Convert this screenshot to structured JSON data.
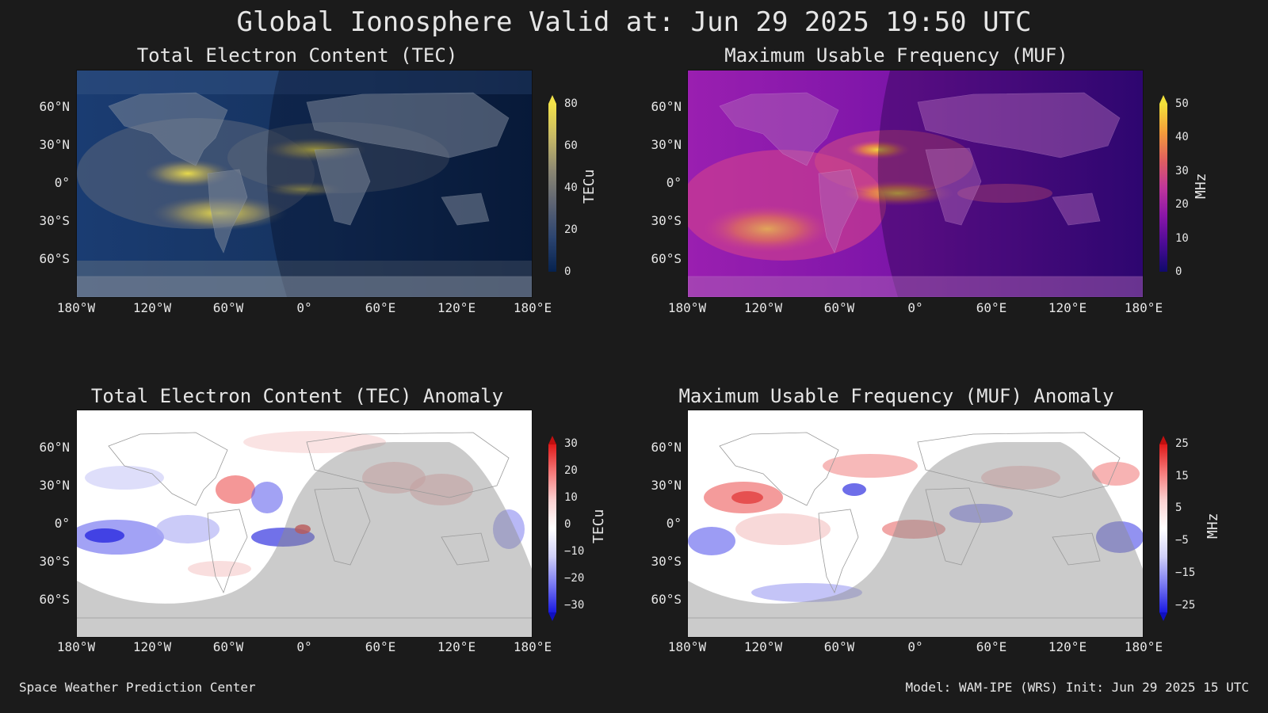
{
  "title": "Global Ionosphere Valid at: Jun 29 2025 19:50 UTC",
  "lat_labels": [
    "60°N",
    "30°N",
    "0°",
    "30°S",
    "60°S"
  ],
  "lon_labels": [
    "180°W",
    "120°W",
    "60°W",
    "0°",
    "60°E",
    "120°E",
    "180°E"
  ],
  "panels": [
    {
      "title": "Total Electron Content (TEC)",
      "colorbar": {
        "label": "TECu",
        "ticks": [
          "80",
          "60",
          "40",
          "20",
          "0"
        ],
        "range": [
          0,
          80
        ],
        "colormap": "cividis-like"
      },
      "colors": {
        "base": "#0f2a55",
        "high": "#ece14a",
        "mid": "#6f6f78"
      }
    },
    {
      "title": "Maximum Usable Frequency (MUF)",
      "colorbar": {
        "label": "MHz",
        "ticks": [
          "50",
          "40",
          "30",
          "20",
          "10",
          "0"
        ],
        "range": [
          0,
          50
        ],
        "colormap": "plasma"
      },
      "colors": {
        "base": "#3b0a86",
        "high": "#f2e13a",
        "mid": "#c0369b"
      }
    },
    {
      "title": "Total Electron Content (TEC) Anomaly",
      "colorbar": {
        "label": "TECu",
        "ticks": [
          "30",
          "20",
          "10",
          "0",
          "−10",
          "−20",
          "−30"
        ],
        "range": [
          -30,
          30
        ],
        "colormap": "bwr"
      },
      "colors": {
        "base": "#ffffff",
        "high": "#e81d1d",
        "low": "#1d1de8"
      }
    },
    {
      "title": "Maximum Usable Frequency (MUF) Anomaly",
      "colorbar": {
        "label": "MHz",
        "ticks": [
          "25",
          "15",
          "5",
          "−5",
          "−15",
          "−25"
        ],
        "range": [
          -25,
          25
        ],
        "colormap": "bwr"
      },
      "colors": {
        "base": "#ffffff",
        "high": "#e81d1d",
        "low": "#1d1de8"
      }
    }
  ],
  "footer": {
    "left": "Space Weather Prediction Center",
    "right": "Model: WAM-IPE (WRS) Init: Jun 29 2025 15 UTC"
  }
}
